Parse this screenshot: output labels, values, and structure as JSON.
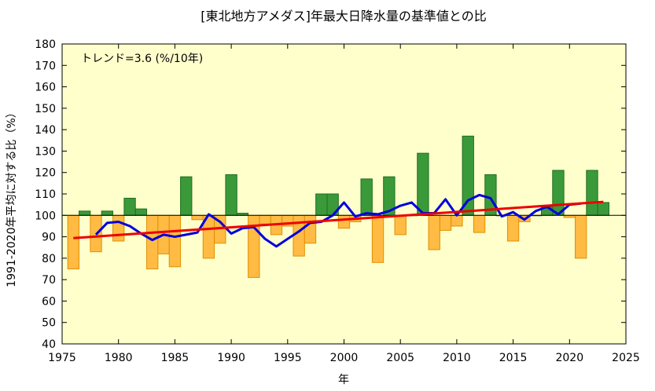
{
  "chart_data": {
    "type": "bar",
    "title": "[東北地方アメダス]年最大日降水量の基準値との比",
    "xlabel": "年",
    "ylabel": "1991-2020年平均に対する比（%）",
    "annotation": "トレンド=3.6 (%/10年)",
    "xlim": [
      1975,
      2025
    ],
    "ylim": [
      40,
      180
    ],
    "baseline": 100,
    "grid": false,
    "x_ticks": [
      "1975",
      "1980",
      "1985",
      "1990",
      "1995",
      "2000",
      "2005",
      "2010",
      "2015",
      "2020",
      "2025"
    ],
    "y_ticks": [
      "40",
      "50",
      "60",
      "70",
      "80",
      "90",
      "100",
      "110",
      "120",
      "130",
      "140",
      "150",
      "160",
      "170",
      "180"
    ],
    "colors": {
      "above": "#3a9a3a",
      "above_edge": "#1f6f1f",
      "below": "#ffbb44",
      "below_edge": "#e09000",
      "moving_average": "#0000dd",
      "trend": "#ee0000",
      "plot_bg": "#ffffcc"
    },
    "series": [
      {
        "type": "bar",
        "x": [
          1976,
          1977,
          1978,
          1979,
          1980,
          1981,
          1982,
          1983,
          1984,
          1985,
          1986,
          1987,
          1988,
          1989,
          1990,
          1991,
          1992,
          1993,
          1994,
          1995,
          1996,
          1997,
          1998,
          1999,
          2000,
          2001,
          2002,
          2003,
          2004,
          2005,
          2006,
          2007,
          2008,
          2009,
          2010,
          2011,
          2012,
          2013,
          2014,
          2015,
          2016,
          2017,
          2018,
          2019,
          2020,
          2021,
          2022,
          2023
        ],
        "values": [
          75,
          102,
          83,
          102,
          88,
          108,
          103,
          75,
          82,
          76,
          118,
          98,
          80,
          87,
          119,
          101,
          71,
          96,
          91,
          95,
          81,
          87,
          110,
          110,
          94,
          97,
          117,
          78,
          118,
          91,
          100,
          129,
          84,
          93,
          95,
          137,
          92,
          119,
          100,
          88,
          97,
          100,
          104,
          121,
          99,
          80,
          121,
          106
        ]
      },
      {
        "type": "line",
        "x": [
          1978,
          1979,
          1980,
          1981,
          1982,
          1983,
          1984,
          1985,
          1986,
          1987,
          1988,
          1989,
          1990,
          1991,
          1992,
          1993,
          1994,
          1995,
          1996,
          1997,
          1998,
          1999,
          2000,
          2001,
          2002,
          2003,
          2004,
          2005,
          2006,
          2007,
          2008,
          2009,
          2010,
          2011,
          2012,
          2013,
          2014,
          2015,
          2016,
          2017,
          2018,
          2019,
          2020,
          2021
        ],
        "values": [
          91,
          96.5,
          97,
          95,
          91.5,
          88.5,
          91,
          90,
          91,
          92,
          100.5,
          97,
          91.5,
          94,
          94.5,
          89,
          85.5,
          89,
          92.5,
          96.5,
          97,
          100,
          106,
          99.5,
          101,
          100.5,
          102,
          104.5,
          106,
          101,
          101,
          107.5,
          100,
          107,
          109.5,
          108,
          99.5,
          101.5,
          98,
          102,
          104,
          100.5,
          105,
          105.5
        ]
      },
      {
        "type": "line",
        "x": [
          1976,
          2023
        ],
        "values": [
          89.4,
          106.3
        ]
      }
    ]
  }
}
